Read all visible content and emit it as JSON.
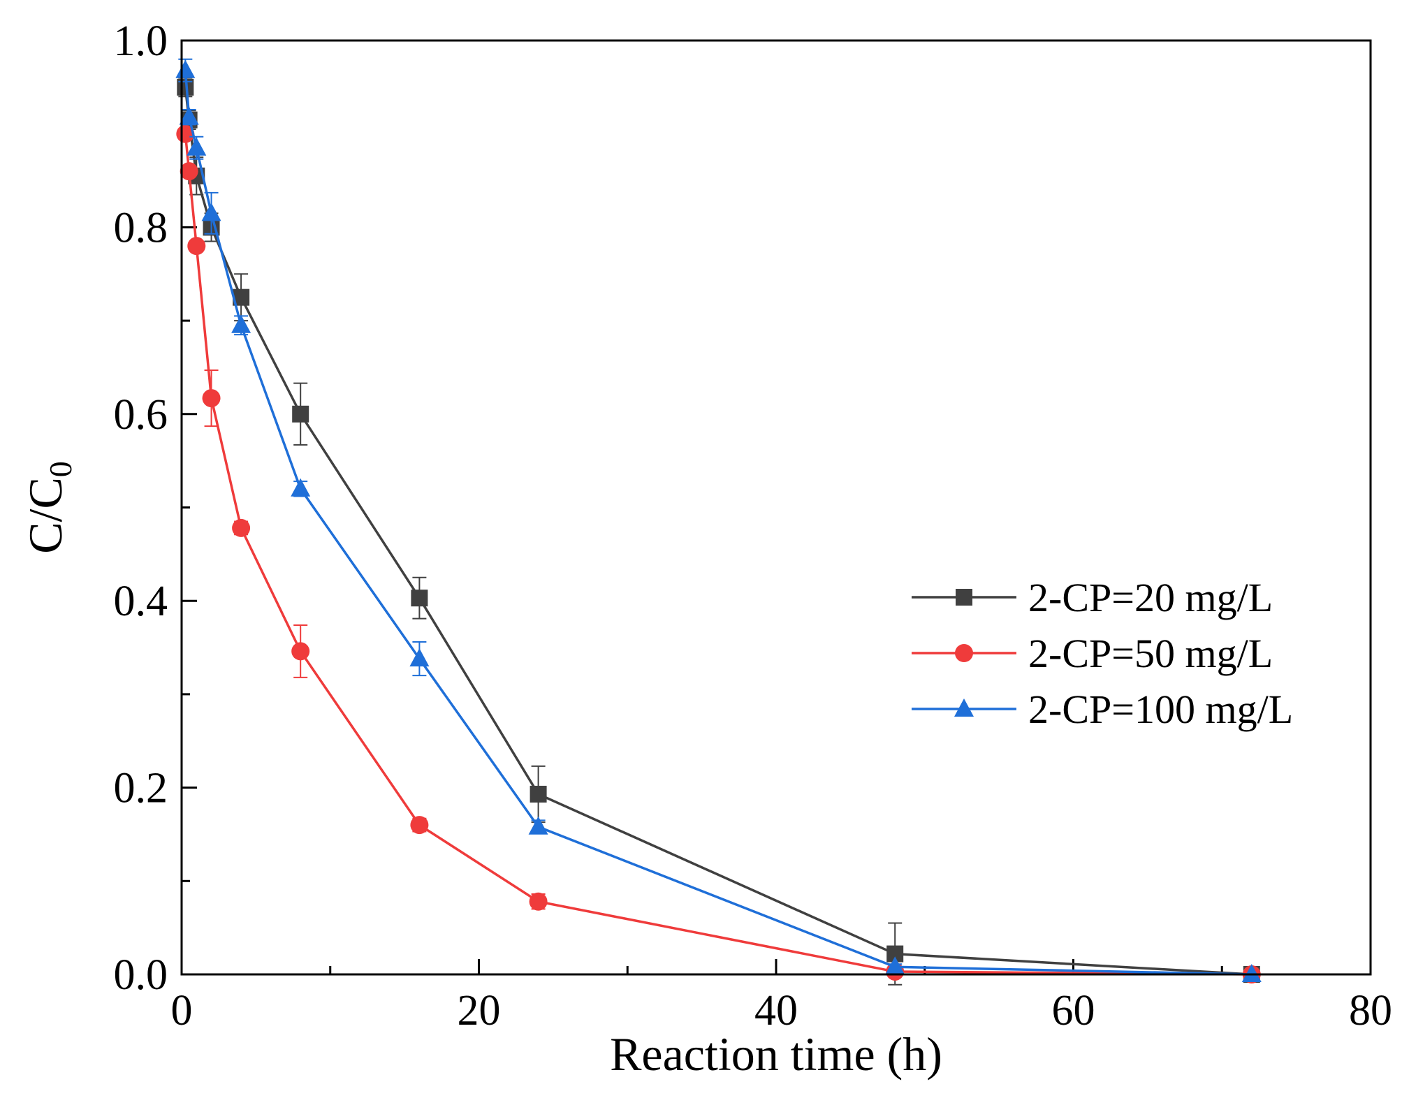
{
  "chart_data": {
    "type": "line",
    "xlabel": "Reaction time (h)",
    "ylabel": "C/C",
    "ylabel_subscript": "0",
    "xlim": [
      0,
      80
    ],
    "ylim": [
      0,
      1.0
    ],
    "x_major_ticks": [
      0,
      20,
      40,
      60,
      80
    ],
    "x_minor_ticks": [
      10,
      30,
      50,
      70
    ],
    "y_major_ticks": [
      0.0,
      0.2,
      0.4,
      0.6,
      0.8,
      1.0
    ],
    "y_minor_ticks": [
      0.1,
      0.3,
      0.5,
      0.7,
      0.9
    ],
    "x_tick_labels": [
      "0",
      "20",
      "40",
      "60",
      "80"
    ],
    "y_tick_labels": [
      "0.0",
      "0.2",
      "0.4",
      "0.6",
      "0.8",
      "1.0"
    ],
    "legend_position": "center-right",
    "series": [
      {
        "name": "2-CP=20 mg/L",
        "color": "#404040",
        "marker": "square",
        "x": [
          0.25,
          0.5,
          1,
          2,
          4,
          8,
          16,
          24,
          48,
          72
        ],
        "y": [
          0.95,
          0.915,
          0.855,
          0.8,
          0.725,
          0.6,
          0.403,
          0.193,
          0.022,
          0.0
        ],
        "err": [
          0.01,
          0.01,
          0.02,
          0.015,
          0.025,
          0.033,
          0.022,
          0.03,
          0.033,
          0.0
        ]
      },
      {
        "name": "2-CP=50 mg/L",
        "color": "#ef3b3b",
        "marker": "circle",
        "x": [
          0.25,
          0.5,
          1,
          2,
          4,
          8,
          16,
          24,
          48,
          72
        ],
        "y": [
          0.9,
          0.86,
          0.78,
          0.617,
          0.478,
          0.346,
          0.16,
          0.078,
          0.003,
          0.0
        ],
        "err": [
          0.005,
          0.005,
          0.005,
          0.03,
          0.007,
          0.028,
          0.007,
          0.008,
          0.002,
          0.0
        ]
      },
      {
        "name": "2-CP=100 mg/L",
        "color": "#1f6fd8",
        "marker": "triangle",
        "x": [
          0.25,
          0.5,
          1,
          2,
          4,
          8,
          16,
          24,
          48,
          72
        ],
        "y": [
          0.968,
          0.918,
          0.885,
          0.815,
          0.695,
          0.52,
          0.338,
          0.158,
          0.008,
          0.0
        ],
        "err": [
          0.012,
          0.008,
          0.012,
          0.022,
          0.01,
          0.008,
          0.018,
          0.007,
          0.003,
          0.0
        ]
      }
    ]
  }
}
